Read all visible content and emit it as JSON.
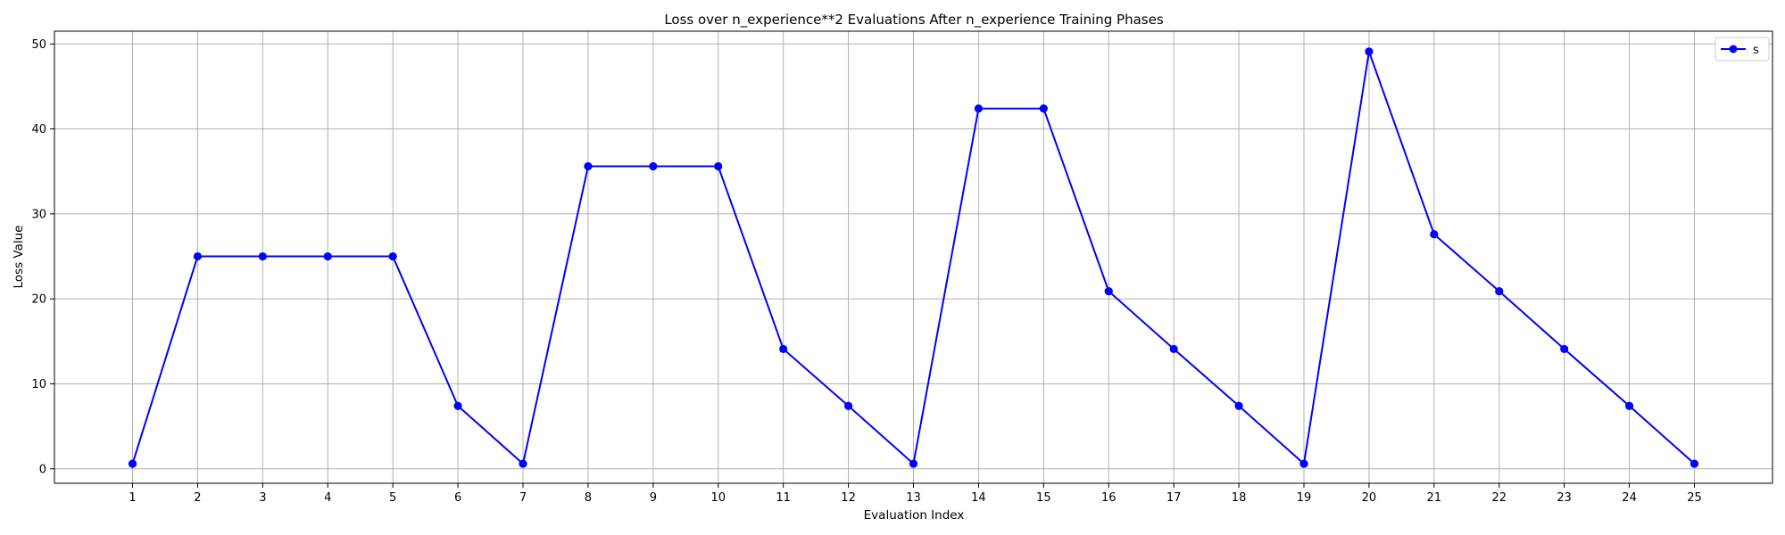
{
  "chart_data": {
    "type": "line",
    "title": "Loss over n_experience**2 Evaluations After n_experience Training Phases",
    "xlabel": "Evaluation Index",
    "ylabel": "Loss Value",
    "x": [
      1,
      2,
      3,
      4,
      5,
      6,
      7,
      8,
      9,
      10,
      11,
      12,
      13,
      14,
      15,
      16,
      17,
      18,
      19,
      20,
      21,
      22,
      23,
      24,
      25
    ],
    "x_ticks": [
      "1",
      "2",
      "3",
      "4",
      "5",
      "6",
      "7",
      "8",
      "9",
      "10",
      "11",
      "12",
      "13",
      "14",
      "15",
      "16",
      "17",
      "18",
      "19",
      "20",
      "21",
      "22",
      "23",
      "24",
      "25"
    ],
    "y_ticks": [
      0,
      10,
      20,
      30,
      40,
      50
    ],
    "xlim": [
      -0.2,
      26.2
    ],
    "ylim": [
      -1.7,
      51.5
    ],
    "grid": true,
    "legend_position": "top-right",
    "series": [
      {
        "name": "s",
        "color": "#0000ff",
        "marker": "circle",
        "values": [
          0.6,
          25.0,
          25.0,
          25.0,
          25.0,
          7.4,
          0.6,
          35.6,
          35.6,
          35.6,
          14.1,
          7.4,
          0.6,
          42.4,
          42.4,
          20.9,
          14.1,
          7.4,
          0.6,
          49.1,
          27.6,
          20.9,
          14.1,
          7.4,
          0.6
        ]
      }
    ]
  }
}
